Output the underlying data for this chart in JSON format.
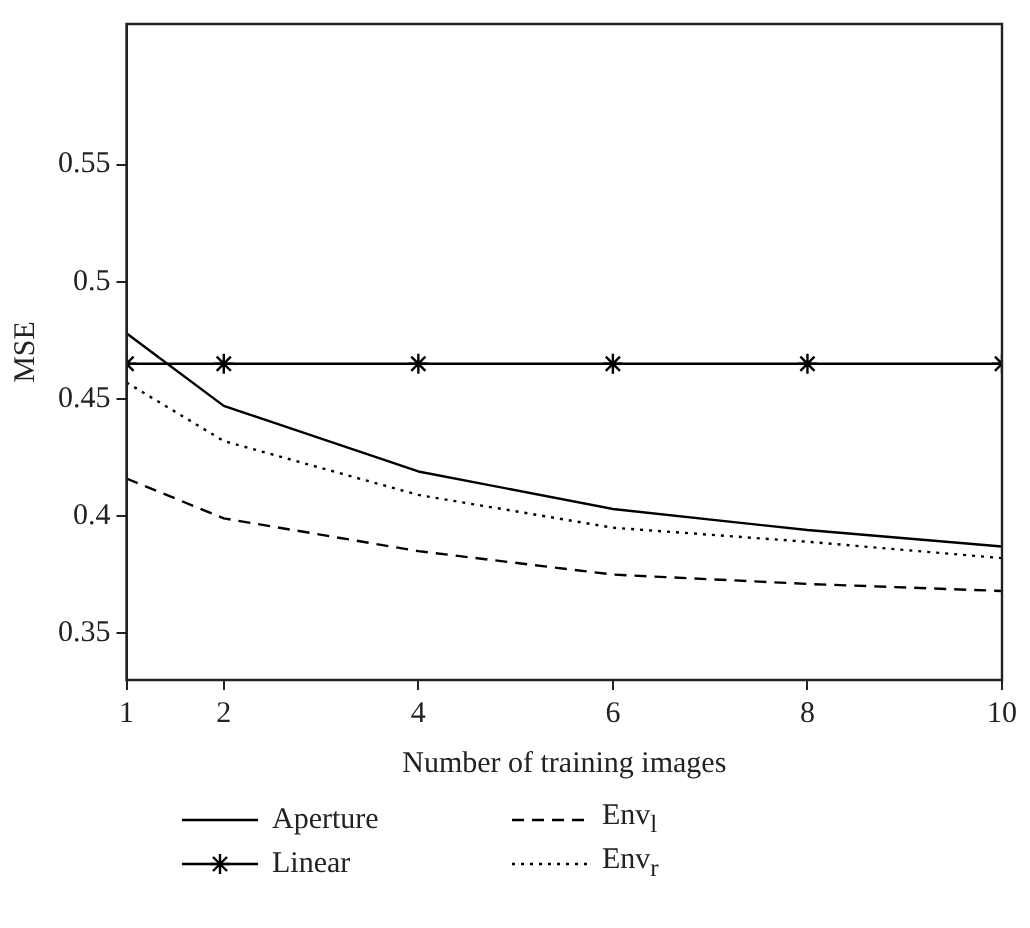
{
  "chart_data": {
    "type": "line",
    "xlabel": "Number of training images",
    "ylabel": "MSE",
    "x": [
      1,
      2,
      4,
      6,
      8,
      10
    ],
    "series": [
      {
        "name": "Aperture",
        "color": "#000000",
        "values": [
          0.478,
          0.447,
          0.419,
          0.403,
          0.394,
          0.387
        ],
        "marker": "none",
        "line_style": "solid"
      },
      {
        "name": "Linear",
        "color": "#000000",
        "values": [
          0.465,
          0.465,
          0.465,
          0.465,
          0.465,
          0.465
        ],
        "marker": "cross",
        "line_style": "solid"
      },
      {
        "name": "Env$_{l}$",
        "color": "#000000",
        "values": [
          0.416,
          0.399,
          0.385,
          0.375,
          0.371,
          0.368
        ],
        "marker": "none",
        "line_style": "dashed"
      },
      {
        "name": "Env$_{r}$",
        "color": "#000000",
        "values": [
          0.457,
          0.432,
          0.409,
          0.395,
          0.389,
          0.382
        ],
        "marker": "none",
        "line_style": "dotted"
      }
    ],
    "xlim": [
      1,
      10
    ],
    "xticks": [
      1,
      2,
      4,
      6,
      8,
      10
    ],
    "ylim": [
      0.33,
      0.61
    ],
    "yticks": [
      0.35,
      0.4,
      0.45,
      0.5,
      0.55
    ],
    "grid": false,
    "legend": "bottom"
  }
}
